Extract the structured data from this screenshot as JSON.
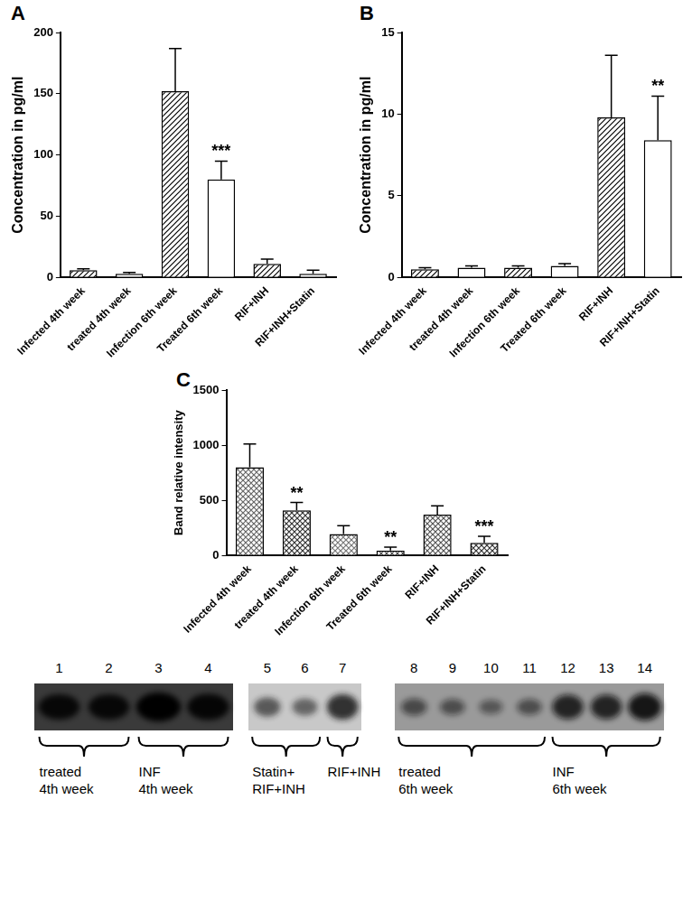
{
  "chart_data": [
    {
      "type": "bar",
      "title": "A",
      "y_label": "Concentration in pg/ml",
      "categories": [
        "Infected 4th week",
        "treated 4th week",
        "Infection 6th week",
        "Treated 6th week",
        "RIF+INH",
        "RIF+INH+Statin"
      ],
      "values": [
        6,
        3,
        152,
        80,
        11,
        3
      ],
      "errors": [
        1,
        1,
        35,
        15,
        4,
        3
      ],
      "annotations": [
        null,
        null,
        null,
        "***",
        null,
        null
      ],
      "colors": [
        "#000000",
        "#ffffff",
        "#000000",
        "#ffffff",
        "#000000",
        "#ffffff"
      ],
      "ylim": [
        0,
        200
      ],
      "yticks": [
        0,
        50,
        100,
        150,
        200
      ],
      "grid": false
    },
    {
      "type": "bar",
      "title": "B",
      "y_label": "Concentration in pg/ml",
      "categories": [
        "Infected 4th week",
        "treated 4th week",
        "Infection 6th week",
        "Treated 6th week",
        "RIF+INH",
        "RIF+INH+Statin"
      ],
      "values": [
        0.5,
        0.6,
        0.6,
        0.7,
        9.8,
        8.4
      ],
      "errors": [
        0.1,
        0.1,
        0.1,
        0.15,
        3.8,
        2.7
      ],
      "annotations": [
        null,
        null,
        null,
        null,
        null,
        "**"
      ],
      "colors": [
        "#000000",
        "#ffffff",
        "#000000",
        "#ffffff",
        "#000000",
        "#ffffff"
      ],
      "ylim": [
        0,
        15
      ],
      "yticks": [
        0,
        5,
        10,
        15
      ],
      "grid": false
    },
    {
      "type": "bar",
      "title": "C",
      "y_label": "Band relative intensity",
      "categories": [
        "Infected 4th week",
        "treated 4th week",
        "Infection 6th week",
        "Treated 6th week",
        "RIF+INH",
        "RIF+INH+Statin"
      ],
      "values": [
        800,
        410,
        195,
        45,
        370,
        115
      ],
      "errors": [
        210,
        70,
        75,
        30,
        80,
        60
      ],
      "annotations": [
        null,
        "**",
        null,
        "**",
        null,
        "***"
      ],
      "colors": [
        "#666666",
        "#333333",
        "#777777",
        "#444444",
        "#555555",
        "#333333"
      ],
      "ylim": [
        0,
        1500
      ],
      "yticks": [
        0,
        500,
        1000,
        1500
      ],
      "grid": false
    }
  ],
  "blot": {
    "panels": [
      {
        "lanes": [
          1,
          2,
          3,
          4
        ],
        "groups": [
          {
            "label": [
              "treated",
              "4th week"
            ],
            "from": 1,
            "to": 2
          },
          {
            "label": [
              "INF",
              "4th week"
            ],
            "from": 3,
            "to": 4
          }
        ]
      },
      {
        "lanes": [
          5,
          6,
          7
        ],
        "groups": [
          {
            "label": [
              "Statin+",
              "RIF+INH"
            ],
            "from": 5,
            "to": 6
          },
          {
            "label": [
              "RIF+INH"
            ],
            "from": 7,
            "to": 7
          }
        ]
      },
      {
        "lanes": [
          8,
          9,
          10,
          11,
          12,
          13,
          14
        ],
        "groups": [
          {
            "label": [
              "treated",
              "6th week"
            ],
            "from": 8,
            "to": 11
          },
          {
            "label": [
              "INF",
              "6th week"
            ],
            "from": 12,
            "to": 14
          }
        ]
      }
    ]
  }
}
